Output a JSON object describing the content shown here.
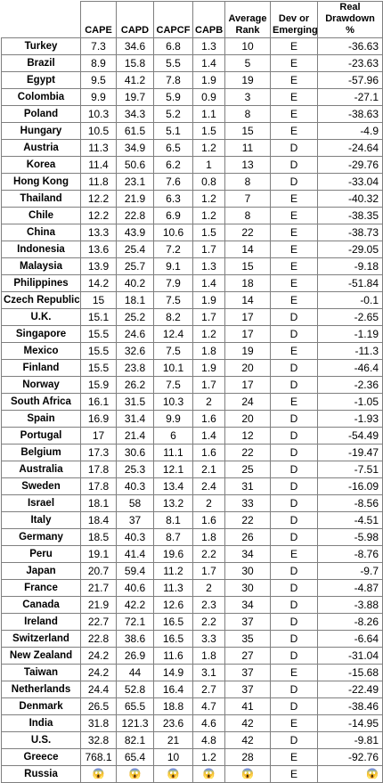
{
  "table": {
    "headers": [
      "",
      "CAPE",
      "CAPD",
      "CAPCF",
      "CAPB",
      "Average Rank",
      "Dev or Emerging",
      "Real Drawdown %"
    ],
    "rows": [
      [
        "Turkey",
        "7.3",
        "34.6",
        "6.8",
        "1.3",
        "10",
        "E",
        "-36.63"
      ],
      [
        "Brazil",
        "8.9",
        "15.8",
        "5.5",
        "1.4",
        "5",
        "E",
        "-23.63"
      ],
      [
        "Egypt",
        "9.5",
        "41.2",
        "7.8",
        "1.9",
        "19",
        "E",
        "-57.96"
      ],
      [
        "Colombia",
        "9.9",
        "19.7",
        "5.9",
        "0.9",
        "3",
        "E",
        "-27.1"
      ],
      [
        "Poland",
        "10.3",
        "34.3",
        "5.2",
        "1.1",
        "8",
        "E",
        "-38.63"
      ],
      [
        "Hungary",
        "10.5",
        "61.5",
        "5.1",
        "1.5",
        "15",
        "E",
        "-4.9"
      ],
      [
        "Austria",
        "11.3",
        "34.9",
        "6.5",
        "1.2",
        "11",
        "D",
        "-24.64"
      ],
      [
        "Korea",
        "11.4",
        "50.6",
        "6.2",
        "1",
        "13",
        "D",
        "-29.76"
      ],
      [
        "Hong Kong",
        "11.8",
        "23.1",
        "7.6",
        "0.8",
        "8",
        "D",
        "-33.04"
      ],
      [
        "Thailand",
        "12.2",
        "21.9",
        "6.3",
        "1.2",
        "7",
        "E",
        "-40.32"
      ],
      [
        "Chile",
        "12.2",
        "22.8",
        "6.9",
        "1.2",
        "8",
        "E",
        "-38.35"
      ],
      [
        "China",
        "13.3",
        "43.9",
        "10.6",
        "1.5",
        "22",
        "E",
        "-38.73"
      ],
      [
        "Indonesia",
        "13.6",
        "25.4",
        "7.2",
        "1.7",
        "14",
        "E",
        "-29.05"
      ],
      [
        "Malaysia",
        "13.9",
        "25.7",
        "9.1",
        "1.3",
        "15",
        "E",
        "-9.18"
      ],
      [
        "Philippines",
        "14.2",
        "40.2",
        "7.9",
        "1.4",
        "18",
        "E",
        "-51.84"
      ],
      [
        "Czech Republic",
        "15",
        "18.1",
        "7.5",
        "1.9",
        "14",
        "E",
        "-0.1"
      ],
      [
        "U.K.",
        "15.1",
        "25.2",
        "8.2",
        "1.7",
        "17",
        "D",
        "-2.65"
      ],
      [
        "Singapore",
        "15.5",
        "24.6",
        "12.4",
        "1.2",
        "17",
        "D",
        "-1.19"
      ],
      [
        "Mexico",
        "15.5",
        "32.6",
        "7.5",
        "1.8",
        "19",
        "E",
        "-11.3"
      ],
      [
        "Finland",
        "15.5",
        "23.8",
        "10.1",
        "1.9",
        "20",
        "D",
        "-46.4"
      ],
      [
        "Norway",
        "15.9",
        "26.2",
        "7.5",
        "1.7",
        "17",
        "D",
        "-2.36"
      ],
      [
        "South Africa",
        "16.1",
        "31.5",
        "10.3",
        "2",
        "24",
        "E",
        "-1.05"
      ],
      [
        "Spain",
        "16.9",
        "31.4",
        "9.9",
        "1.6",
        "20",
        "D",
        "-1.93"
      ],
      [
        "Portugal",
        "17",
        "21.4",
        "6",
        "1.4",
        "12",
        "D",
        "-54.49"
      ],
      [
        "Belgium",
        "17.3",
        "30.6",
        "11.1",
        "1.6",
        "22",
        "D",
        "-19.47"
      ],
      [
        "Australia",
        "17.8",
        "25.3",
        "12.1",
        "2.1",
        "25",
        "D",
        "-7.51"
      ],
      [
        "Sweden",
        "17.8",
        "40.3",
        "13.4",
        "2.4",
        "31",
        "D",
        "-16.09"
      ],
      [
        "Israel",
        "18.1",
        "58",
        "13.2",
        "2",
        "33",
        "D",
        "-8.56"
      ],
      [
        "Italy",
        "18.4",
        "37",
        "8.1",
        "1.6",
        "22",
        "D",
        "-4.51"
      ],
      [
        "Germany",
        "18.5",
        "40.3",
        "8.7",
        "1.8",
        "26",
        "D",
        "-5.98"
      ],
      [
        "Peru",
        "19.1",
        "41.4",
        "19.6",
        "2.2",
        "34",
        "E",
        "-8.76"
      ],
      [
        "Japan",
        "20.7",
        "59.4",
        "11.2",
        "1.7",
        "30",
        "D",
        "-9.7"
      ],
      [
        "France",
        "21.7",
        "40.6",
        "11.3",
        "2",
        "30",
        "D",
        "-4.87"
      ],
      [
        "Canada",
        "21.9",
        "42.2",
        "12.6",
        "2.3",
        "34",
        "D",
        "-3.88"
      ],
      [
        "Ireland",
        "22.7",
        "72.1",
        "16.5",
        "2.2",
        "37",
        "D",
        "-8.26"
      ],
      [
        "Switzerland",
        "22.8",
        "38.6",
        "16.5",
        "3.3",
        "35",
        "D",
        "-6.64"
      ],
      [
        "New Zealand",
        "24.2",
        "26.9",
        "11.6",
        "1.8",
        "27",
        "D",
        "-31.04"
      ],
      [
        "Taiwan",
        "24.2",
        "44",
        "14.9",
        "3.1",
        "37",
        "E",
        "-15.68"
      ],
      [
        "Netherlands",
        "24.4",
        "52.8",
        "16.4",
        "2.7",
        "37",
        "D",
        "-22.49"
      ],
      [
        "Denmark",
        "26.5",
        "65.5",
        "18.8",
        "4.7",
        "41",
        "D",
        "-38.46"
      ],
      [
        "India",
        "31.8",
        "121.3",
        "23.6",
        "4.6",
        "42",
        "E",
        "-14.95"
      ],
      [
        "U.S.",
        "32.8",
        "82.1",
        "21",
        "4.8",
        "42",
        "D",
        "-9.81"
      ],
      [
        "Greece",
        "768.1",
        "65.4",
        "10",
        "1.2",
        "28",
        "E",
        "-92.76"
      ],
      [
        "Russia",
        "😱",
        "😱",
        "😱",
        "😱",
        "😱",
        "E",
        "😱"
      ]
    ]
  }
}
